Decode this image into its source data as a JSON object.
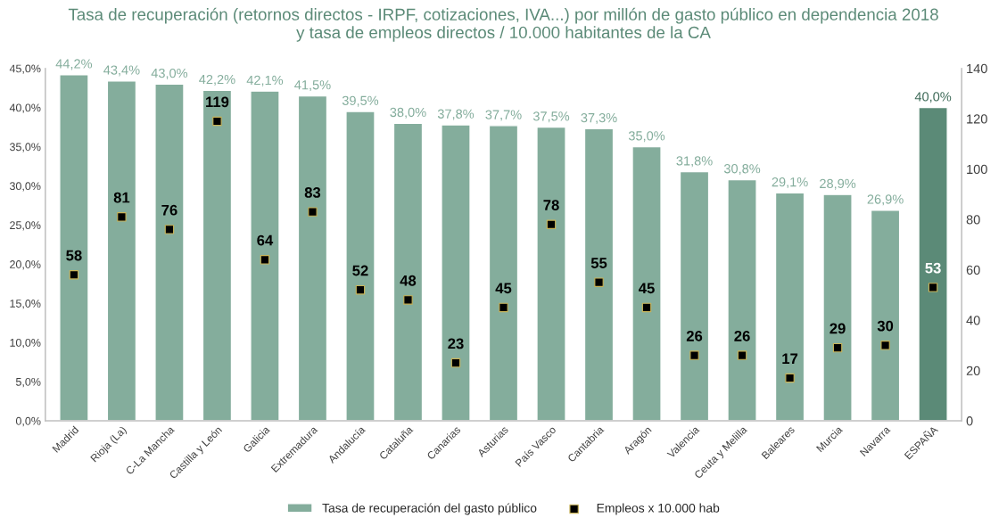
{
  "chart_data": {
    "type": "bar",
    "title": "Tasa de recuperación (retornos directos - IRPF, cotizaciones, IVA...) por millón de gasto público en dependencia 2018\ny tasa de empleos directos / 10.000 habitantes de la CA",
    "categories": [
      "Madrid",
      "Rioja (La)",
      "C-La Mancha",
      "Castilla y León",
      "Galicia",
      "Extremadura",
      "Andalucía",
      "Cataluña",
      "Canarias",
      "Asturias",
      "País Vasco",
      "Cantabria",
      "Aragón",
      "Valencia",
      "Ceuta y Melilla",
      "Baleares",
      "Murcia",
      "Navarra",
      "ESPAÑA"
    ],
    "series": [
      {
        "name": "Tasa de recuperación del gasto público",
        "colors": [
          "#84ad9c",
          "#84ad9c",
          "#84ad9c",
          "#84ad9c",
          "#84ad9c",
          "#84ad9c",
          "#84ad9c",
          "#84ad9c",
          "#84ad9c",
          "#84ad9c",
          "#84ad9c",
          "#84ad9c",
          "#84ad9c",
          "#84ad9c",
          "#84ad9c",
          "#84ad9c",
          "#84ad9c",
          "#84ad9c",
          "#5b8a77"
        ],
        "values": [
          44.2,
          43.4,
          43.0,
          42.2,
          42.1,
          41.5,
          39.5,
          38.0,
          37.8,
          37.7,
          37.5,
          37.3,
          35.0,
          31.8,
          30.8,
          29.1,
          28.9,
          26.9,
          40.0
        ],
        "value_labels": [
          "44,2%",
          "43,4%",
          "43,0%",
          "42,2%",
          "42,1%",
          "41,5%",
          "39,5%",
          "38,0%",
          "37,8%",
          "37,7%",
          "37,5%",
          "37,3%",
          "35,0%",
          "31,8%",
          "30,8%",
          "29,1%",
          "28,9%",
          "26,9%",
          "40,0%"
        ]
      },
      {
        "name": "Empleos x 10.000 hab",
        "type": "scatter",
        "axis": "y2",
        "color": "#000000",
        "values": [
          58,
          81,
          76,
          119,
          64,
          83,
          52,
          48,
          23,
          45,
          78,
          55,
          45,
          26,
          26,
          17,
          29,
          30,
          53
        ],
        "value_labels": [
          "58",
          "81",
          "76",
          "119",
          "64",
          "83",
          "52",
          "48",
          "23",
          "45",
          "78",
          "55",
          "45",
          "26",
          "26",
          "17",
          "29",
          "30",
          "53"
        ]
      }
    ],
    "ylim": [
      0,
      45
    ],
    "yticks": [
      {
        "value": 0,
        "label": "0,0%"
      },
      {
        "value": 5,
        "label": "5,0%"
      },
      {
        "value": 10,
        "label": "10,0%"
      },
      {
        "value": 15,
        "label": "15,0%"
      },
      {
        "value": 20,
        "label": "20,0%"
      },
      {
        "value": 25,
        "label": "25,0%"
      },
      {
        "value": 30,
        "label": "30,0%"
      },
      {
        "value": 35,
        "label": "35,0%"
      },
      {
        "value": 40,
        "label": "40,0%"
      },
      {
        "value": 45,
        "label": "45,0%"
      }
    ],
    "y2lim": [
      0,
      140
    ],
    "y2ticks": [
      0,
      20,
      40,
      60,
      80,
      100,
      120,
      140
    ],
    "marker": "square",
    "legend": "bottom"
  }
}
